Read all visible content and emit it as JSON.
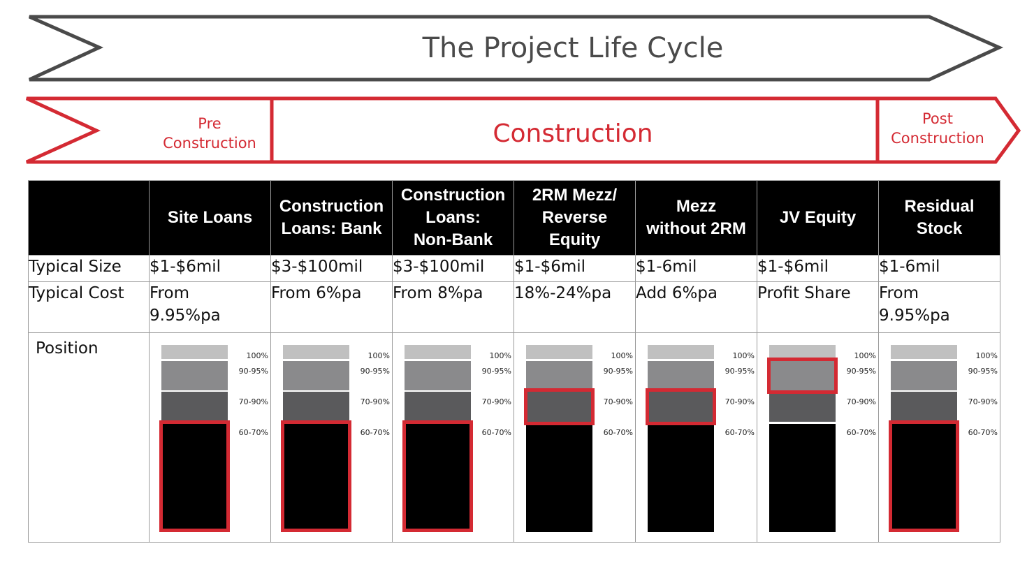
{
  "banner": {
    "title": "The Project Life Cycle",
    "phases": {
      "pre": [
        "Pre",
        "Construction"
      ],
      "construction": "Construction",
      "post": [
        "Post",
        "Construction"
      ]
    }
  },
  "colors": {
    "accent": "#d42a33",
    "arrow_gray": "#4a4a4a"
  },
  "table": {
    "headers": [
      "",
      "Site Loans",
      "Construction Loans: Bank",
      "Construction Loans: Non-Bank",
      "2RM Mezz/ Reverse Equity",
      "Mezz without 2RM",
      "JV Equity",
      "Residual Stock"
    ],
    "header_lines": [
      [],
      [
        "Site Loans"
      ],
      [
        "Construction",
        "Loans: Bank"
      ],
      [
        "Construction",
        "Loans:",
        "Non-Bank"
      ],
      [
        "2RM Mezz/",
        "Reverse",
        "Equity"
      ],
      [
        "Mezz",
        "without 2RM"
      ],
      [
        "JV Equity"
      ],
      [
        "Residual",
        "Stock"
      ]
    ],
    "rows": {
      "size": {
        "label": "Typical Size",
        "values": [
          "$1-$6mil",
          "$3-$100mil",
          "$3-$100mil",
          "$1-$6mil",
          "$1-6mil",
          "$1-$6mil",
          "$1-6mil"
        ]
      },
      "cost": {
        "label": "Typical Cost",
        "values": [
          [
            "From",
            "9.95%pa"
          ],
          [
            "From 6%pa"
          ],
          [
            "From 8%pa"
          ],
          [
            "18%-24%pa"
          ],
          [
            "Add 6%pa"
          ],
          [
            "Profit Share"
          ],
          [
            "From",
            "9.95%pa"
          ]
        ]
      },
      "position": {
        "label": "Position",
        "scale_labels": [
          "100%",
          "90-95%",
          "70-90%",
          "60-70%"
        ],
        "highlighted_tier": [
          "60-70%",
          "60-70%",
          "60-70%",
          "70-90%",
          "70-90%",
          "90-95%",
          "60-70%"
        ]
      }
    }
  }
}
